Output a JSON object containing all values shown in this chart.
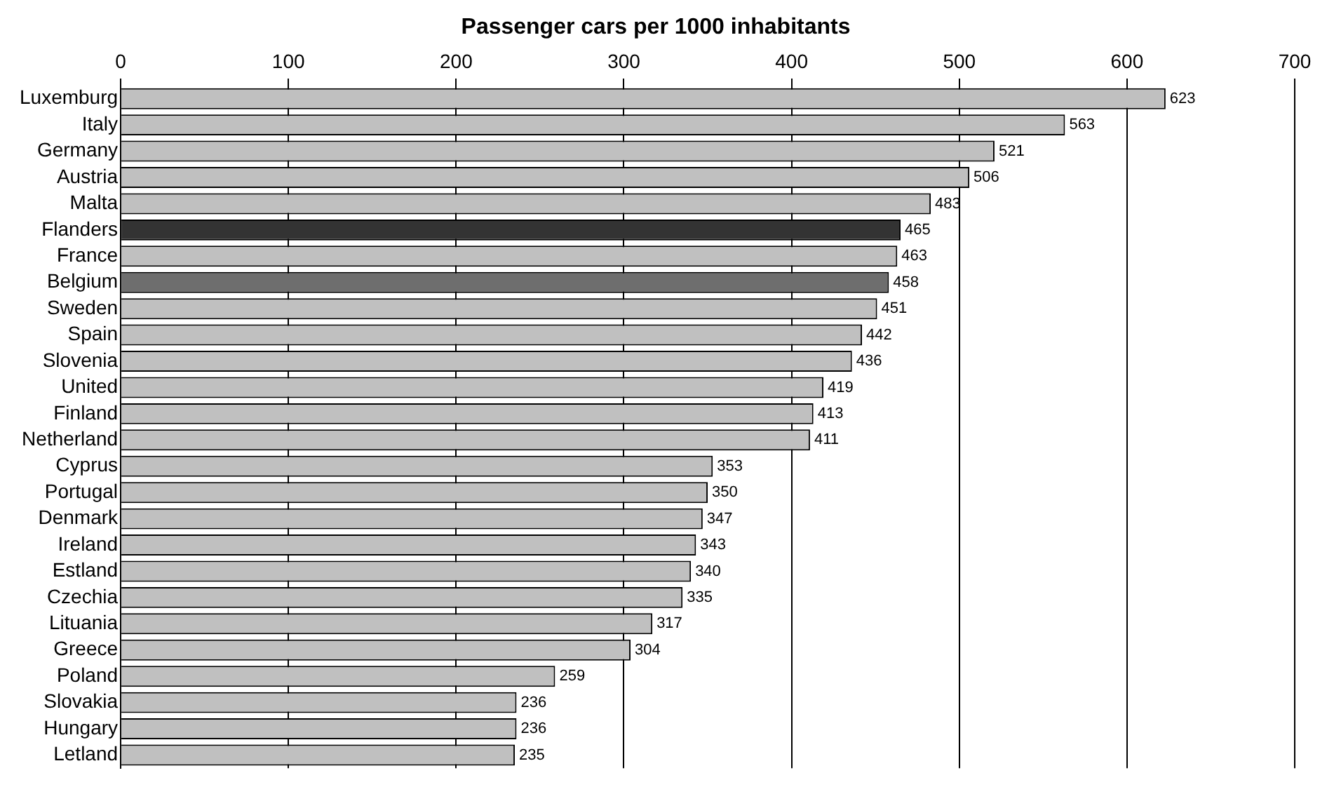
{
  "chart_data": {
    "type": "bar",
    "orientation": "horizontal",
    "title": "Passenger cars per 1000 inhabitants",
    "categories": [
      "Luxemburg",
      "Italy",
      "Germany",
      "Austria",
      "Malta",
      "Flanders",
      "France",
      "Belgium",
      "Sweden",
      "Spain",
      "Slovenia",
      "United",
      "Finland",
      "Netherland",
      "Cyprus",
      "Portugal",
      "Denmark",
      "Ireland",
      "Estland",
      "Czechia",
      "Lituania",
      "Greece",
      "Poland",
      "Slovakia",
      "Hungary",
      "Letland"
    ],
    "values": [
      623,
      563,
      521,
      506,
      483,
      465,
      463,
      458,
      451,
      442,
      436,
      419,
      413,
      411,
      353,
      350,
      347,
      343,
      340,
      335,
      317,
      304,
      259,
      236,
      236,
      235
    ],
    "colors": [
      "#c0c0c0",
      "#c0c0c0",
      "#c0c0c0",
      "#c0c0c0",
      "#c0c0c0",
      "#333333",
      "#c0c0c0",
      "#6e6e6e",
      "#c0c0c0",
      "#c0c0c0",
      "#c0c0c0",
      "#c0c0c0",
      "#c0c0c0",
      "#c0c0c0",
      "#c0c0c0",
      "#c0c0c0",
      "#c0c0c0",
      "#c0c0c0",
      "#c0c0c0",
      "#c0c0c0",
      "#c0c0c0",
      "#c0c0c0",
      "#c0c0c0",
      "#c0c0c0",
      "#c0c0c0",
      "#c0c0c0"
    ],
    "xlim": [
      0,
      700
    ],
    "xticks": [
      0,
      100,
      200,
      300,
      400,
      500,
      600,
      700
    ],
    "grid": "x",
    "data_labels": true,
    "legend": false
  }
}
